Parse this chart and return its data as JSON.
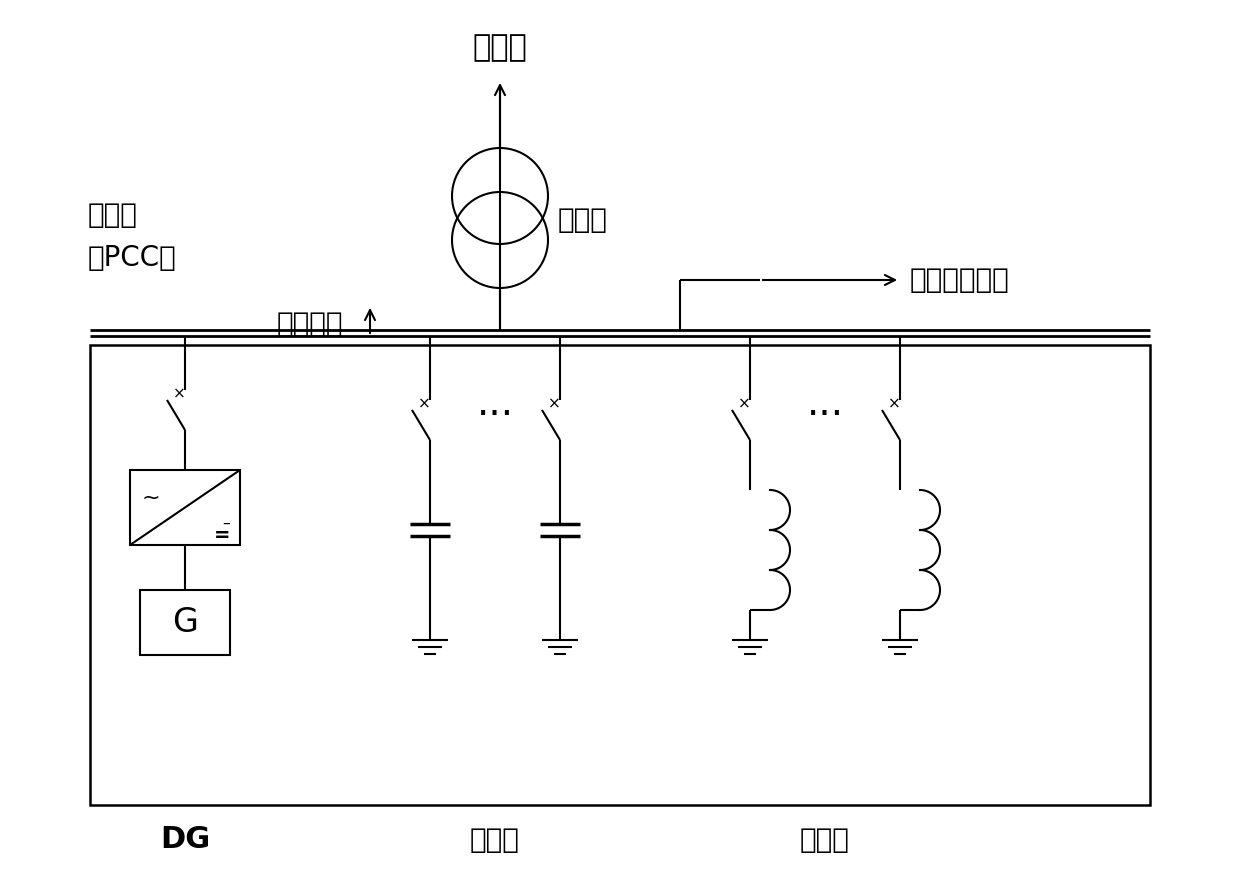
{
  "bg_color": "#ffffff",
  "line_color": "#000000",
  "label_distribution": "配电网",
  "label_pcc_line1": "并网点",
  "label_pcc_line2": "（PCC）",
  "label_local_load": "本地负载",
  "label_transformer": "变压器",
  "label_feeder": "馈线中压负载",
  "label_DG": "DG",
  "label_capacitor": "电容器",
  "label_reactor": "电抗器",
  "label_G": "G",
  "figsize": [
    12.4,
    8.82
  ],
  "dpi": 100
}
